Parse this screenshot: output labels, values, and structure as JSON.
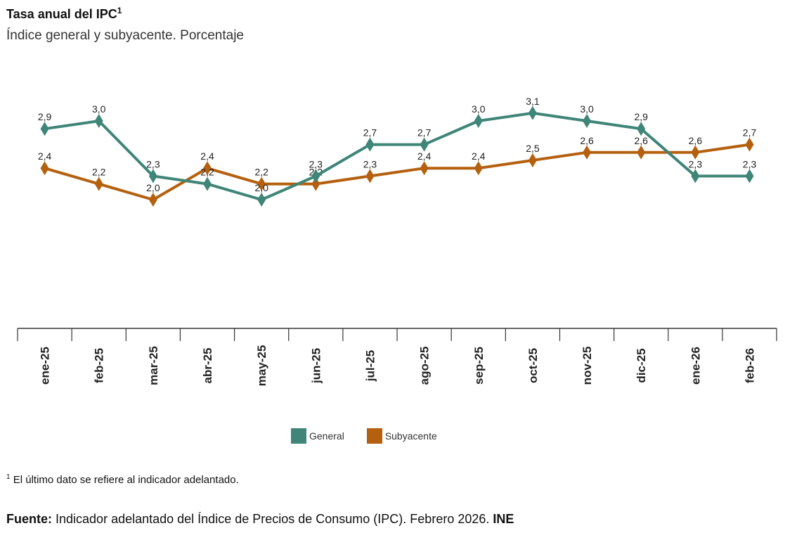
{
  "title": "Tasa anual del IPC",
  "title_sup": "1",
  "subtitle": "Índice general y subyacente. Porcentaje",
  "chart_data": {
    "type": "line",
    "categories": [
      "ene-25",
      "feb-25",
      "mar-25",
      "abr-25",
      "may-25",
      "jun-25",
      "jul-25",
      "ago-25",
      "sep-25",
      "oct-25",
      "nov-25",
      "dic-25",
      "ene-26",
      "feb-26"
    ],
    "series": [
      {
        "name": "General",
        "color": "#3f8578",
        "values": [
          2.9,
          3.0,
          2.3,
          2.2,
          2.0,
          2.3,
          2.7,
          2.7,
          3.0,
          3.1,
          3.0,
          2.9,
          2.3,
          2.3
        ]
      },
      {
        "name": "Subyacente",
        "color": "#b5600f",
        "values": [
          2.4,
          2.2,
          2.0,
          2.4,
          2.2,
          2.2,
          2.3,
          2.4,
          2.4,
          2.5,
          2.6,
          2.6,
          2.6,
          2.7
        ]
      }
    ],
    "marker": "diamond",
    "data_labels": true,
    "decimal_separator": ",",
    "grid": false,
    "legend_position": "bottom"
  },
  "footnote": {
    "sup": "1",
    "text": "El último dato se refiere al indicador adelantado."
  },
  "source": {
    "label": "Fuente:",
    "text": "Indicador adelantado del Índice de Precios de Consumo (IPC). Febrero 2026.",
    "org": "INE"
  }
}
